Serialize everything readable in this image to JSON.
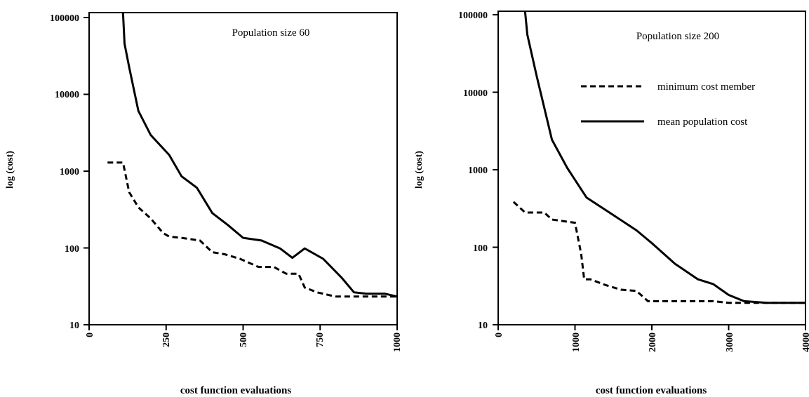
{
  "chart_data": [
    {
      "type": "line",
      "title": "Population size 60",
      "xlabel": "cost function evaluations",
      "ylabel": "log (cost)",
      "yscale": "log",
      "xlim": [
        0,
        1000
      ],
      "ylim": [
        10,
        100000
      ],
      "x_ticks": [
        "0",
        "250",
        "500",
        "750",
        "1000"
      ],
      "y_ticks": [
        "10",
        "100",
        "1000",
        "10000",
        "100000"
      ],
      "legend": false,
      "series": [
        {
          "key": "min",
          "style": "dashed",
          "x": [
            60,
            110,
            130,
            160,
            200,
            240,
            260,
            300,
            360,
            400,
            440,
            490,
            550,
            600,
            640,
            680,
            700,
            740,
            800,
            900,
            1000
          ],
          "y": [
            1200,
            1200,
            500,
            320,
            230,
            150,
            135,
            130,
            120,
            85,
            80,
            70,
            55,
            55,
            45,
            45,
            30,
            26,
            23,
            23,
            23
          ]
        },
        {
          "key": "mean",
          "style": "solid",
          "x": [
            110,
            115,
            130,
            160,
            200,
            260,
            300,
            350,
            400,
            450,
            500,
            560,
            620,
            660,
            700,
            760,
            820,
            860,
            900,
            960,
            1000
          ],
          "y": [
            100000,
            40000,
            20000,
            5500,
            2700,
            1500,
            800,
            570,
            270,
            190,
            130,
            120,
            95,
            72,
            95,
            70,
            40,
            26,
            25,
            25,
            23
          ]
        }
      ]
    },
    {
      "type": "line",
      "title": "Population size 200",
      "xlabel": "cost function evaluations",
      "ylabel": "log (cost)",
      "yscale": "log",
      "xlim": [
        0,
        4000
      ],
      "ylim": [
        10,
        100000
      ],
      "x_ticks": [
        "0",
        "1000",
        "2000",
        "3000",
        "4000"
      ],
      "y_ticks": [
        "10",
        "100",
        "1000",
        "10000",
        "100000"
      ],
      "legend": true,
      "legend_position": "top-right",
      "series": [
        {
          "key": "min",
          "name": "minimum cost member",
          "style": "dashed",
          "x": [
            200,
            350,
            600,
            700,
            1000,
            1080,
            1120,
            1200,
            1400,
            1600,
            1800,
            1950,
            2500,
            2800,
            3000,
            3200,
            4000
          ],
          "y": [
            370,
            270,
            270,
            220,
            200,
            80,
            38,
            38,
            32,
            28,
            27,
            20,
            20,
            20,
            19,
            19,
            19
          ]
        },
        {
          "key": "mean",
          "name": "mean population cost",
          "style": "solid",
          "x": [
            350,
            380,
            500,
            700,
            900,
            1150,
            1500,
            1800,
            2000,
            2300,
            2600,
            2800,
            3000,
            3200,
            3500,
            4000
          ],
          "y": [
            100000,
            50000,
            15000,
            2300,
            1000,
            420,
            250,
            160,
            110,
            60,
            38,
            33,
            24,
            20,
            19,
            19
          ]
        }
      ]
    }
  ]
}
